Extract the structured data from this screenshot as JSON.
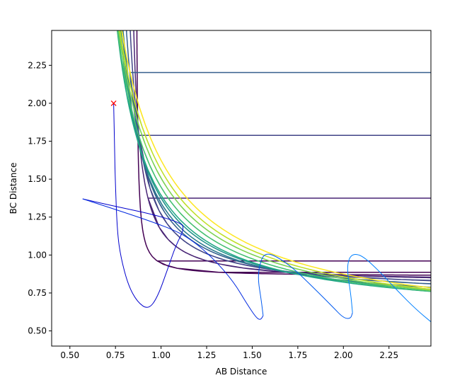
{
  "chart_data": {
    "type": "contour",
    "title": "",
    "xlabel": "AB Distance",
    "ylabel": "BC Distance",
    "xlim": [
      0.4,
      2.48
    ],
    "ylim": [
      0.4,
      2.48
    ],
    "xticks": [
      "0.50",
      "0.75",
      "1.00",
      "1.25",
      "1.50",
      "1.75",
      "2.00",
      "2.25"
    ],
    "yticks": [
      "0.50",
      "0.75",
      "1.00",
      "1.25",
      "1.50",
      "1.75",
      "2.00",
      "2.25"
    ],
    "grid": false,
    "contour_levels": [
      {
        "color": "#440154",
        "plateau": 0.86
      },
      {
        "color": "#482475",
        "plateau": 0.81
      },
      {
        "color": "#414487",
        "plateau": 0.76
      },
      {
        "color": "#355f8d",
        "plateau": 0.71
      },
      {
        "color": "#2a788e",
        "plateau": 0.66
      },
      {
        "color": "#21918c",
        "plateau": 0.62
      },
      {
        "color": "#22a884",
        "plateau": 0.58
      },
      {
        "color": "#44bf70",
        "plateau": 0.555
      },
      {
        "color": "#7ad151",
        "plateau": 0.535
      },
      {
        "color": "#bddf26",
        "plateau": 0.515
      },
      {
        "color": "#fde725",
        "plateau": 0.5
      }
    ],
    "trajectory_segments": [
      {
        "color": "#0000cd",
        "points": [
          [
            0.74,
            2.0
          ],
          [
            0.745,
            1.7
          ],
          [
            0.75,
            1.45
          ],
          [
            0.76,
            1.15
          ],
          [
            0.78,
            0.98
          ],
          [
            0.82,
            0.8
          ],
          [
            0.87,
            0.69
          ],
          [
            0.93,
            0.64
          ],
          [
            0.98,
            0.72
          ],
          [
            1.04,
            0.92
          ],
          [
            1.08,
            1.06
          ],
          [
            1.13,
            1.18
          ],
          [
            1.1,
            1.215
          ],
          [
            0.95,
            1.27
          ],
          [
            0.75,
            1.32
          ],
          [
            0.57,
            1.37
          ]
        ]
      },
      {
        "color": "#0028e0",
        "points": [
          [
            0.57,
            1.37
          ],
          [
            0.75,
            1.3
          ],
          [
            0.95,
            1.22
          ],
          [
            1.1,
            1.15
          ],
          [
            1.2,
            1.07
          ],
          [
            1.3,
            0.96
          ],
          [
            1.4,
            0.82
          ],
          [
            1.47,
            0.68
          ],
          [
            1.52,
            0.59
          ],
          [
            1.545,
            0.57
          ],
          [
            1.56,
            0.6
          ]
        ]
      },
      {
        "color": "#005af0",
        "points": [
          [
            1.56,
            0.6
          ],
          [
            1.55,
            0.7
          ],
          [
            1.53,
            0.85
          ],
          [
            1.545,
            0.96
          ],
          [
            1.57,
            1.01
          ],
          [
            1.62,
            1.0
          ],
          [
            1.72,
            0.92
          ],
          [
            1.84,
            0.78
          ],
          [
            1.94,
            0.66
          ],
          [
            2.0,
            0.585
          ],
          [
            2.04,
            0.58
          ],
          [
            2.05,
            0.62
          ]
        ]
      },
      {
        "color": "#0080ff",
        "points": [
          [
            2.05,
            0.62
          ],
          [
            2.04,
            0.75
          ],
          [
            2.02,
            0.9
          ],
          [
            2.03,
            0.98
          ],
          [
            2.06,
            1.01
          ],
          [
            2.11,
            0.99
          ],
          [
            2.2,
            0.89
          ],
          [
            2.3,
            0.76
          ],
          [
            2.4,
            0.64
          ],
          [
            2.48,
            0.56
          ]
        ]
      }
    ],
    "markers": [
      {
        "symbol": "x",
        "x": 0.74,
        "y": 2.0,
        "color": "#ff0000"
      }
    ]
  }
}
